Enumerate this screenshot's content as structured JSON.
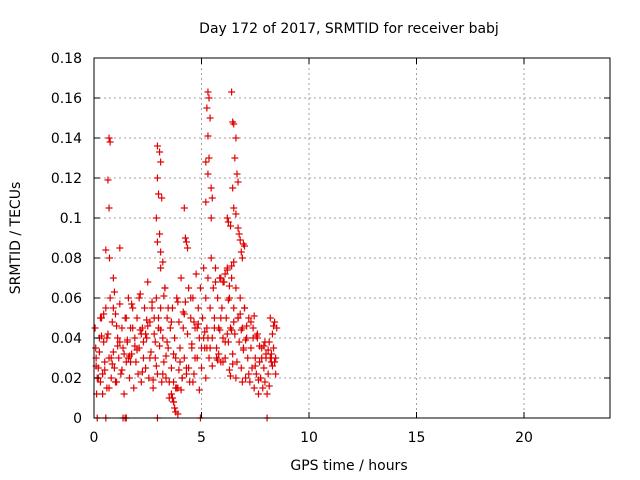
{
  "chart_data": {
    "type": "scatter",
    "title": "Day 172 of 2017, SRMTID for receiver babj",
    "xlabel": "GPS time / hours",
    "ylabel": "SRMTID / TECUs",
    "xlim": [
      0,
      24
    ],
    "ylim": [
      0,
      0.18
    ],
    "xticks": [
      "0",
      "5",
      "10",
      "15",
      "20"
    ],
    "yticks": [
      "0",
      "0.02",
      "0.04",
      "0.06",
      "0.08",
      "0.1",
      "0.12",
      "0.14",
      "0.16",
      "0.18"
    ],
    "grid": true,
    "marker": "+",
    "color": "#e00000",
    "series": [
      {
        "x": [
          0.7,
          0.75,
          0.65,
          0.7,
          0.55,
          0.72,
          1.2,
          0.9,
          2.95,
          3.05,
          3.1,
          2.95,
          3.0,
          3.15,
          2.9,
          3.05,
          2.95,
          3.1,
          3.2,
          3.1,
          4.25,
          4.3,
          4.2,
          4.35,
          5.3,
          5.35,
          5.25,
          5.4,
          5.3,
          5.35,
          5.2,
          5.3,
          5.45,
          5.5,
          5.2,
          5.45,
          6.4,
          6.45,
          6.5,
          6.6,
          6.55,
          6.65,
          6.7,
          6.45,
          6.5,
          6.6,
          6.2,
          6.25,
          6.35,
          6.7,
          6.75,
          6.8,
          6.95,
          7.0,
          6.85,
          6.9,
          6.5,
          6.4,
          6.2,
          6.1,
          5.9,
          6.0,
          6.3,
          0.05,
          0.1,
          0.15,
          0.12,
          0.08,
          0.2,
          0.25,
          0.3,
          0.35,
          0.4,
          0.45,
          0.5,
          0.55,
          0.6,
          0.65,
          0.7,
          0.75,
          0.8,
          0.85,
          0.9,
          0.95,
          1.0,
          1.05,
          1.1,
          1.15,
          1.2,
          1.25,
          1.3,
          1.35,
          1.4,
          1.45,
          1.5,
          1.55,
          1.6,
          1.65,
          1.7,
          1.75,
          1.8,
          1.85,
          1.9,
          1.95,
          2.0,
          2.05,
          2.1,
          2.15,
          2.2,
          2.25,
          2.3,
          2.35,
          2.4,
          2.45,
          2.5,
          2.55,
          2.6,
          2.65,
          2.7,
          2.75,
          2.8,
          2.85,
          2.9,
          2.95,
          3.0,
          3.05,
          3.1,
          3.15,
          3.2,
          3.25,
          3.3,
          3.35,
          3.4,
          3.45,
          3.5,
          3.55,
          3.6,
          3.65,
          3.7,
          3.75,
          3.8,
          3.85,
          3.9,
          3.95,
          4.0,
          4.05,
          4.1,
          4.15,
          4.2,
          4.25,
          4.3,
          4.35,
          4.4,
          4.45,
          4.5,
          4.55,
          4.6,
          4.65,
          4.7,
          4.75,
          4.8,
          4.85,
          4.9,
          4.95,
          5.0,
          5.05,
          5.1,
          5.15,
          5.2,
          5.25,
          5.3,
          5.35,
          5.4,
          5.45,
          5.5,
          5.55,
          5.6,
          5.65,
          5.7,
          5.75,
          5.8,
          5.85,
          5.9,
          5.95,
          6.0,
          6.05,
          6.1,
          6.15,
          6.2,
          6.25,
          6.3,
          6.35,
          6.4,
          6.45,
          6.5,
          6.55,
          6.6,
          6.65,
          6.7,
          6.75,
          6.8,
          6.85,
          6.9,
          6.95,
          7.0,
          7.05,
          7.1,
          7.15,
          7.2,
          7.25,
          7.3,
          7.35,
          7.4,
          7.45,
          7.5,
          7.55,
          7.6,
          7.65,
          7.7,
          7.75,
          7.8,
          7.85,
          7.9,
          7.95,
          8.0,
          8.05,
          8.1,
          8.15,
          8.2,
          8.25,
          8.3,
          8.35,
          8.4,
          8.45,
          8.5,
          0.3,
          0.6,
          0.9,
          1.2,
          1.5,
          1.8,
          2.1,
          2.4,
          2.7,
          3.0,
          3.3,
          3.6,
          3.9,
          4.2,
          4.5,
          4.8,
          5.1,
          5.4,
          5.7,
          6.0,
          6.3,
          6.6,
          6.9,
          7.2,
          7.5,
          7.8,
          8.1,
          8.4,
          0.2,
          0.5,
          0.8,
          1.1,
          1.4,
          1.7,
          2.0,
          2.3,
          2.6,
          2.9,
          3.2,
          3.5,
          3.8,
          4.1,
          4.4,
          4.7,
          5.0,
          5.3,
          5.6,
          5.9,
          6.2,
          6.5,
          6.8,
          7.1,
          7.4,
          7.7,
          8.0,
          8.3,
          0.4,
          0.7,
          1.0,
          1.3,
          1.6,
          1.9,
          2.2,
          2.5,
          2.8,
          3.1,
          3.4,
          3.7,
          4.0,
          4.3,
          4.6,
          4.9,
          5.2,
          5.5,
          5.8,
          6.1,
          6.4,
          6.7,
          7.0,
          7.3,
          7.6,
          7.9,
          8.2,
          8.45,
          3.6,
          3.7,
          3.75,
          3.8,
          3.65,
          3.85,
          3.9,
          3.7,
          0.15,
          0.55,
          1.35,
          1.45,
          1.5,
          2.95,
          4.95,
          8.05,
          0.25,
          0.85,
          1.55,
          2.15,
          2.75,
          3.35,
          3.95,
          4.55,
          5.15,
          5.75,
          6.35,
          6.95,
          7.55,
          8.15,
          0.1,
          0.45,
          1.05,
          1.65,
          2.25,
          2.85,
          3.45,
          4.05,
          4.65,
          5.25,
          5.85,
          6.45,
          7.05,
          7.65,
          8.25,
          0.35,
          0.95,
          1.75,
          2.45,
          3.25,
          4.15,
          4.85,
          5.65,
          6.25,
          6.85,
          7.45,
          7.95,
          8.35
        ],
        "y": [
          0.14,
          0.138,
          0.119,
          0.105,
          0.084,
          0.08,
          0.085,
          0.07,
          0.136,
          0.133,
          0.128,
          0.12,
          0.112,
          0.11,
          0.1,
          0.092,
          0.088,
          0.083,
          0.078,
          0.075,
          0.09,
          0.088,
          0.105,
          0.085,
          0.163,
          0.16,
          0.155,
          0.15,
          0.141,
          0.13,
          0.128,
          0.122,
          0.115,
          0.11,
          0.108,
          0.1,
          0.163,
          0.148,
          0.147,
          0.14,
          0.13,
          0.122,
          0.118,
          0.115,
          0.105,
          0.102,
          0.1,
          0.098,
          0.096,
          0.095,
          0.092,
          0.089,
          0.087,
          0.086,
          0.083,
          0.08,
          0.078,
          0.076,
          0.074,
          0.072,
          0.07,
          0.068,
          0.066,
          0.045,
          0.03,
          0.02,
          0.012,
          0.035,
          0.025,
          0.04,
          0.018,
          0.05,
          0.022,
          0.038,
          0.028,
          0.055,
          0.015,
          0.042,
          0.03,
          0.06,
          0.02,
          0.048,
          0.033,
          0.025,
          0.052,
          0.018,
          0.04,
          0.03,
          0.057,
          0.022,
          0.045,
          0.035,
          0.012,
          0.05,
          0.028,
          0.038,
          0.06,
          0.02,
          0.045,
          0.032,
          0.055,
          0.015,
          0.04,
          0.028,
          0.05,
          0.022,
          0.035,
          0.062,
          0.018,
          0.045,
          0.03,
          0.055,
          0.025,
          0.04,
          0.068,
          0.02,
          0.048,
          0.033,
          0.058,
          0.015,
          0.042,
          0.03,
          0.06,
          0.022,
          0.045,
          0.036,
          0.055,
          0.018,
          0.04,
          0.028,
          0.065,
          0.02,
          0.05,
          0.035,
          0.01,
          0.045,
          0.025,
          0.055,
          0.008,
          0.04,
          0.03,
          0.06,
          0.015,
          0.048,
          0.035,
          0.07,
          0.02,
          0.045,
          0.03,
          0.058,
          0.025,
          0.042,
          0.065,
          0.018,
          0.05,
          0.035,
          0.06,
          0.022,
          0.045,
          0.072,
          0.03,
          0.055,
          0.04,
          0.065,
          0.025,
          0.05,
          0.075,
          0.035,
          0.06,
          0.045,
          0.07,
          0.03,
          0.055,
          0.08,
          0.04,
          0.065,
          0.05,
          0.075,
          0.035,
          0.06,
          0.045,
          0.07,
          0.028,
          0.055,
          0.04,
          0.068,
          0.03,
          0.05,
          0.075,
          0.038,
          0.06,
          0.045,
          0.07,
          0.032,
          0.055,
          0.042,
          0.065,
          0.028,
          0.05,
          0.038,
          0.06,
          0.025,
          0.045,
          0.035,
          0.055,
          0.02,
          0.04,
          0.03,
          0.05,
          0.018,
          0.035,
          0.025,
          0.045,
          0.015,
          0.03,
          0.022,
          0.04,
          0.012,
          0.028,
          0.02,
          0.035,
          0.015,
          0.025,
          0.018,
          0.03,
          0.012,
          0.022,
          0.038,
          0.05,
          0.028,
          0.042,
          0.035,
          0.048,
          0.03,
          0.045,
          0.05,
          0.04,
          0.055,
          0.038,
          0.05,
          0.045,
          0.06,
          0.042,
          0.055,
          0.05,
          0.065,
          0.048,
          0.058,
          0.052,
          0.06,
          0.045,
          0.04,
          0.035,
          0.03,
          0.028,
          0.024,
          0.02,
          0.018,
          0.022,
          0.026,
          0.03,
          0.034,
          0.028,
          0.02,
          0.024,
          0.03,
          0.036,
          0.032,
          0.028,
          0.034,
          0.038,
          0.03,
          0.026,
          0.022,
          0.018,
          0.015,
          0.02,
          0.025,
          0.03,
          0.035,
          0.04,
          0.045,
          0.05,
          0.042,
          0.048,
          0.052,
          0.046,
          0.04,
          0.036,
          0.032,
          0.026,
          0.012,
          0.015,
          0.018,
          0.024,
          0.03,
          0.036,
          0.042,
          0.046,
          0.05,
          0.044,
          0.038,
          0.032,
          0.028,
          0.022,
          0.018,
          0.014,
          0.02,
          0.026,
          0.032,
          0.038,
          0.044,
          0.05,
          0.055,
          0.048,
          0.042,
          0.036,
          0.03,
          0.022,
          0.012,
          0.008,
          0.005,
          0.003,
          0.01,
          0.015,
          0.002,
          0.018,
          0.0,
          0.0,
          0.0,
          0.0,
          0.0,
          0.0,
          0.0,
          0.0,
          0.033,
          0.027,
          0.039,
          0.044,
          0.019,
          0.031,
          0.024,
          0.037,
          0.043,
          0.029,
          0.021,
          0.034,
          0.041,
          0.016,
          0.026,
          0.052,
          0.046,
          0.031,
          0.023,
          0.038,
          0.055,
          0.014,
          0.048,
          0.035,
          0.044,
          0.027,
          0.039,
          0.019,
          0.032,
          0.041,
          0.063,
          0.057,
          0.049,
          0.061,
          0.053,
          0.047,
          0.068,
          0.059,
          0.044,
          0.051,
          0.038,
          0.046
        ]
      }
    ]
  }
}
